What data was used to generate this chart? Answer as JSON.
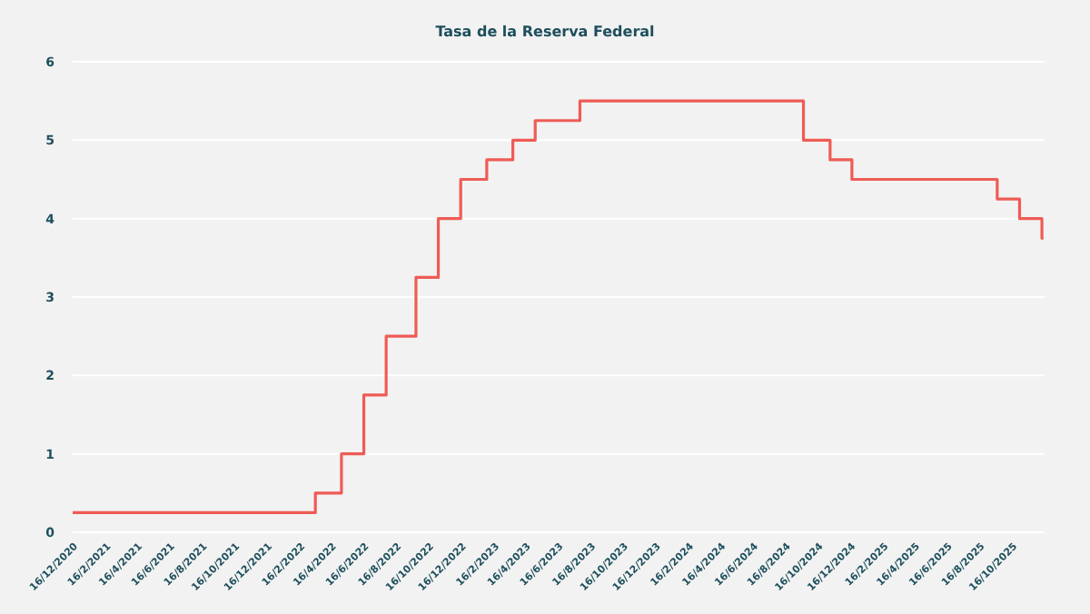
{
  "chart_data": {
    "type": "step",
    "title": "Tasa de la Reserva Federal",
    "x": [
      "2020-12-16",
      "2022-03-17",
      "2022-05-05",
      "2022-06-16",
      "2022-07-28",
      "2022-09-22",
      "2022-11-03",
      "2022-12-15",
      "2023-02-02",
      "2023-03-23",
      "2023-05-04",
      "2023-07-27",
      "2024-09-19",
      "2024-11-08",
      "2024-12-19",
      "2025-09-18",
      "2025-10-30",
      "2025-12-11",
      "2025-12-14"
    ],
    "series": [
      {
        "color": "#ef5b55",
        "values": [
          0.25,
          0.5,
          1,
          1.75,
          2.5,
          3.25,
          4,
          4.5,
          4.75,
          5,
          5.25,
          5.5,
          5,
          4.75,
          4.5,
          4.25,
          4,
          3.75,
          3.75
        ]
      }
    ],
    "xlim": [
      "2020-12-16",
      "2025-12-16"
    ],
    "xticks": [
      {
        "value": "2020-12-16",
        "label": "16/12/2020"
      },
      {
        "value": "2021-02-16",
        "label": "16/2/2021"
      },
      {
        "value": "2021-04-16",
        "label": "16/4/2021"
      },
      {
        "value": "2021-06-16",
        "label": "16/6/2021"
      },
      {
        "value": "2021-08-16",
        "label": "16/8/2021"
      },
      {
        "value": "2021-10-16",
        "label": "16/10/2021"
      },
      {
        "value": "2021-12-16",
        "label": "16/12/2021"
      },
      {
        "value": "2022-02-16",
        "label": "16/2/2022"
      },
      {
        "value": "2022-04-16",
        "label": "16/4/2022"
      },
      {
        "value": "2022-06-16",
        "label": "16/6/2022"
      },
      {
        "value": "2022-08-16",
        "label": "16/8/2022"
      },
      {
        "value": "2022-10-16",
        "label": "16/10/2022"
      },
      {
        "value": "2022-12-16",
        "label": "16/12/2022"
      },
      {
        "value": "2023-02-16",
        "label": "16/2/2023"
      },
      {
        "value": "2023-04-16",
        "label": "16/4/2023"
      },
      {
        "value": "2023-06-16",
        "label": "16/6/2023"
      },
      {
        "value": "2023-08-16",
        "label": "16/8/2023"
      },
      {
        "value": "2023-10-16",
        "label": "16/10/2023"
      },
      {
        "value": "2023-12-16",
        "label": "16/12/2023"
      },
      {
        "value": "2024-02-16",
        "label": "16/2/2024"
      },
      {
        "value": "2024-04-16",
        "label": "16/4/2024"
      },
      {
        "value": "2024-06-16",
        "label": "16/6/2024"
      },
      {
        "value": "2024-08-16",
        "label": "16/8/2024"
      },
      {
        "value": "2024-10-16",
        "label": "16/10/2024"
      },
      {
        "value": "2024-12-16",
        "label": "16/12/2024"
      },
      {
        "value": "2025-02-16",
        "label": "16/2/2025"
      },
      {
        "value": "2025-04-16",
        "label": "16/4/2025"
      },
      {
        "value": "2025-06-16",
        "label": "16/6/2025"
      },
      {
        "value": "2025-08-16",
        "label": "16/8/2025"
      },
      {
        "value": "2025-10-16",
        "label": "16/10/2025"
      }
    ],
    "ylim": [
      0,
      6
    ],
    "yticks": [
      0,
      1,
      2,
      3,
      4,
      5,
      6
    ],
    "grid": "y"
  }
}
